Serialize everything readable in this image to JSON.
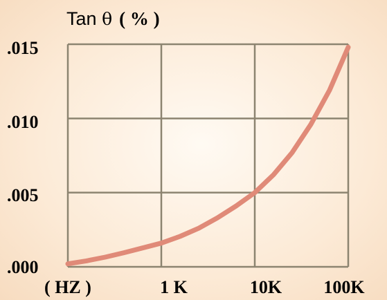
{
  "chart_data": {
    "type": "line",
    "title": "",
    "ylabel": "Tan θ ( % )",
    "ylabel_parts": {
      "name": "Tan",
      "symbol": "θ",
      "unit": "( % )"
    },
    "xlabel": "( HZ )",
    "x_scale": "log",
    "x_tick_labels": [
      "1 K",
      "10K",
      "100K"
    ],
    "y_tick_labels": [
      ".000",
      ".005",
      ".010",
      ".015"
    ],
    "ylim": [
      0,
      0.015
    ],
    "grid": true,
    "series": [
      {
        "color": "#e08a78",
        "x": [
          100,
          158,
          251,
          398,
          631,
          1000,
          1585,
          2512,
          3981,
          6310,
          10000,
          15849,
          25119,
          39811,
          63096,
          100000
        ],
        "y": [
          0.0002,
          0.0004,
          0.00065,
          0.00095,
          0.00127,
          0.0016,
          0.00205,
          0.0026,
          0.0033,
          0.0041,
          0.005,
          0.0062,
          0.0077,
          0.0096,
          0.0119,
          0.0148
        ]
      }
    ],
    "colors": {
      "grid": "#8c8470",
      "line": "#e08a78",
      "background": "#fcead6"
    }
  }
}
